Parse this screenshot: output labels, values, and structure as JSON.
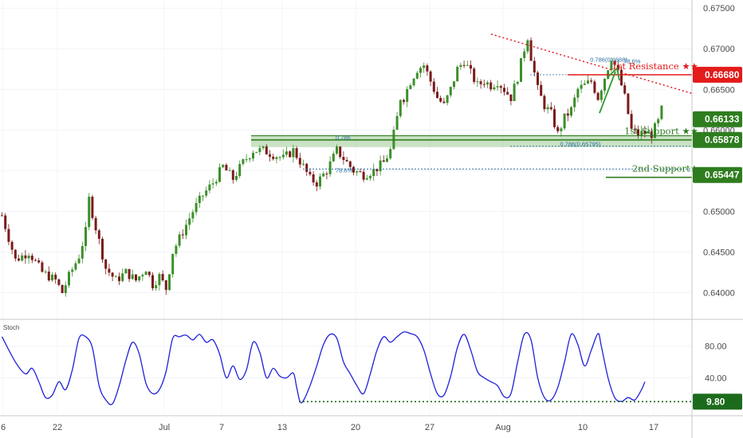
{
  "chart_data": [
    {
      "type": "candlestick",
      "ylim": [
        0.637,
        0.676
      ],
      "y_ticks": [
        0.64,
        0.645,
        0.65,
        0.655,
        0.66,
        0.665,
        0.67,
        0.675
      ],
      "y_tick_labels": [
        "0.64000",
        "0.64500",
        "0.65000",
        "0.65500",
        "0.66000",
        "0.66500",
        "0.67000",
        "0.67500"
      ],
      "x_tick_labels": [
        "6",
        "22",
        "Jul",
        "7",
        "13",
        "20",
        "27",
        "Aug",
        "10",
        "17"
      ],
      "trend_path": [
        [
          0,
          0.6495
        ],
        [
          4,
          0.644
        ],
        [
          8,
          0.645
        ],
        [
          12,
          0.6425
        ],
        [
          16,
          0.6415
        ],
        [
          18,
          0.64
        ],
        [
          20,
          0.642
        ],
        [
          23,
          0.6445
        ],
        [
          25,
          0.6475
        ],
        [
          26,
          0.6515
        ],
        [
          28,
          0.648
        ],
        [
          31,
          0.643
        ],
        [
          34,
          0.6415
        ],
        [
          37,
          0.6425
        ],
        [
          40,
          0.6415
        ],
        [
          43,
          0.643
        ],
        [
          45,
          0.641
        ],
        [
          47,
          0.642
        ],
        [
          49,
          0.6405
        ],
        [
          51,
          0.645
        ],
        [
          54,
          0.6475
        ],
        [
          57,
          0.65
        ],
        [
          60,
          0.652
        ],
        [
          63,
          0.6535
        ],
        [
          66,
          0.6555
        ],
        [
          69,
          0.654
        ],
        [
          72,
          0.656
        ],
        [
          75,
          0.6575
        ],
        [
          78,
          0.6575
        ],
        [
          81,
          0.657
        ],
        [
          84,
          0.6565
        ],
        [
          87,
          0.6575
        ],
        [
          90,
          0.6555
        ],
        [
          92,
          0.654
        ],
        [
          94,
          0.6535
        ],
        [
          97,
          0.655
        ],
        [
          100,
          0.6575
        ],
        [
          102,
          0.6565
        ],
        [
          105,
          0.655
        ],
        [
          108,
          0.6545
        ],
        [
          111,
          0.655
        ],
        [
          114,
          0.656
        ],
        [
          116,
          0.6575
        ],
        [
          117,
          0.6595
        ],
        [
          118,
          0.6615
        ],
        [
          119,
          0.664
        ],
        [
          120,
          0.664
        ],
        [
          122,
          0.666
        ],
        [
          124,
          0.6675
        ],
        [
          126,
          0.668
        ],
        [
          128,
          0.666
        ],
        [
          130,
          0.664
        ],
        [
          132,
          0.663
        ],
        [
          134,
          0.665
        ],
        [
          136,
          0.6675
        ],
        [
          138,
          0.6685
        ],
        [
          140,
          0.667
        ],
        [
          142,
          0.6655
        ],
        [
          144,
          0.666
        ],
        [
          146,
          0.6655
        ],
        [
          148,
          0.666
        ],
        [
          150,
          0.665
        ],
        [
          152,
          0.664
        ],
        [
          154,
          0.6665
        ],
        [
          156,
          0.67
        ],
        [
          157,
          0.6715
        ],
        [
          158,
          0.669
        ],
        [
          160,
          0.665
        ],
        [
          162,
          0.663
        ],
        [
          164,
          0.662
        ],
        [
          166,
          0.6595
        ],
        [
          168,
          0.6615
        ],
        [
          170,
          0.6625
        ],
        [
          172,
          0.665
        ],
        [
          174,
          0.6655
        ],
        [
          176,
          0.666
        ],
        [
          178,
          0.664
        ],
        [
          180,
          0.6665
        ],
        [
          182,
          0.669
        ],
        [
          184,
          0.667
        ],
        [
          186,
          0.664
        ],
        [
          188,
          0.66
        ],
        [
          190,
          0.6595
        ],
        [
          192,
          0.6597
        ],
        [
          194,
          0.6595
        ],
        [
          196,
          0.661
        ],
        [
          197,
          0.6625
        ]
      ],
      "levels": [
        {
          "name": "1st Resistance",
          "label": "1st Resistance ★★",
          "price": 0.6668,
          "badge": "0.66680",
          "color": "#e31b1b"
        },
        {
          "name": "1st Support",
          "label": "1st Support ★★",
          "price": 0.65878,
          "badge": "0.65878",
          "color": "#2e7d1e"
        },
        {
          "name": "2nd Support",
          "label": "2nd Support★",
          "price": 0.65447,
          "badge": "0.65447",
          "color": "#2e7d1e"
        }
      ],
      "current_price_badge": "0.66133",
      "current_price": 0.66133,
      "fib_labels": [
        {
          "text": "0.786(0.6688)",
          "x": 176,
          "y": 0.6684
        },
        {
          "text": "78.6%",
          "x": 186,
          "y": 0.6682
        },
        {
          "text": "0.786(0.65795)",
          "x": 167,
          "y": 0.658
        },
        {
          "text": "0.786",
          "x": 100,
          "y": 0.6588
        },
        {
          "text": "78.6%",
          "x": 100,
          "y": 0.6548
        }
      ]
    },
    {
      "type": "line",
      "title": "Stoch",
      "ylim": [
        -6,
        112
      ],
      "y_ticks": [
        40,
        80
      ],
      "y_tick_labels": [
        "40.00",
        "80.00"
      ],
      "level_badge": "9.80",
      "level_value": 9.8,
      "series": [
        {
          "values": [
            [
              0,
              92
            ],
            [
              4,
              60
            ],
            [
              7,
              45
            ],
            [
              9,
              52
            ],
            [
              11,
              35
            ],
            [
              13,
              15
            ],
            [
              15,
              18
            ],
            [
              17,
              35
            ],
            [
              19,
              25
            ],
            [
              21,
              50
            ],
            [
              23,
              90
            ],
            [
              25,
              92
            ],
            [
              27,
              78
            ],
            [
              29,
              30
            ],
            [
              31,
              12
            ],
            [
              33,
              7
            ],
            [
              35,
              30
            ],
            [
              37,
              62
            ],
            [
              39,
              85
            ],
            [
              41,
              70
            ],
            [
              43,
              33
            ],
            [
              45,
              20
            ],
            [
              47,
              25
            ],
            [
              49,
              48
            ],
            [
              51,
              90
            ],
            [
              53,
              92
            ],
            [
              55,
              94
            ],
            [
              57,
              88
            ],
            [
              59,
              95
            ],
            [
              61,
              85
            ],
            [
              63,
              88
            ],
            [
              65,
              70
            ],
            [
              67,
              40
            ],
            [
              69,
              55
            ],
            [
              71,
              38
            ],
            [
              73,
              50
            ],
            [
              75,
              85
            ],
            [
              77,
              72
            ],
            [
              79,
              40
            ],
            [
              81,
              52
            ],
            [
              83,
              42
            ],
            [
              85,
              40
            ],
            [
              87,
              46
            ],
            [
              88,
              28
            ],
            [
              89,
              10
            ],
            [
              90,
              11
            ],
            [
              92,
              30
            ],
            [
              94,
              55
            ],
            [
              96,
              82
            ],
            [
              98,
              95
            ],
            [
              100,
              90
            ],
            [
              102,
              60
            ],
            [
              104,
              45
            ],
            [
              106,
              30
            ],
            [
              108,
              20
            ],
            [
              110,
              45
            ],
            [
              112,
              75
            ],
            [
              114,
              92
            ],
            [
              116,
              85
            ],
            [
              118,
              92
            ],
            [
              120,
              98
            ],
            [
              122,
              96
            ],
            [
              124,
              92
            ],
            [
              126,
              75
            ],
            [
              128,
              45
            ],
            [
              130,
              20
            ],
            [
              132,
              18
            ],
            [
              134,
              42
            ],
            [
              136,
              78
            ],
            [
              138,
              95
            ],
            [
              140,
              75
            ],
            [
              142,
              48
            ],
            [
              144,
              40
            ],
            [
              146,
              35
            ],
            [
              148,
              30
            ],
            [
              150,
              16
            ],
            [
              152,
              20
            ],
            [
              154,
              60
            ],
            [
              156,
              95
            ],
            [
              158,
              88
            ],
            [
              160,
              40
            ],
            [
              162,
              15
            ],
            [
              164,
              12
            ],
            [
              166,
              28
            ],
            [
              168,
              60
            ],
            [
              170,
              95
            ],
            [
              172,
              82
            ],
            [
              174,
              55
            ],
            [
              176,
              75
            ],
            [
              178,
              96
            ],
            [
              179,
              80
            ],
            [
              181,
              40
            ],
            [
              183,
              15
            ],
            [
              185,
              10
            ],
            [
              187,
              15
            ],
            [
              189,
              12
            ],
            [
              191,
              25
            ],
            [
              192,
              35
            ]
          ]
        }
      ]
    }
  ]
}
